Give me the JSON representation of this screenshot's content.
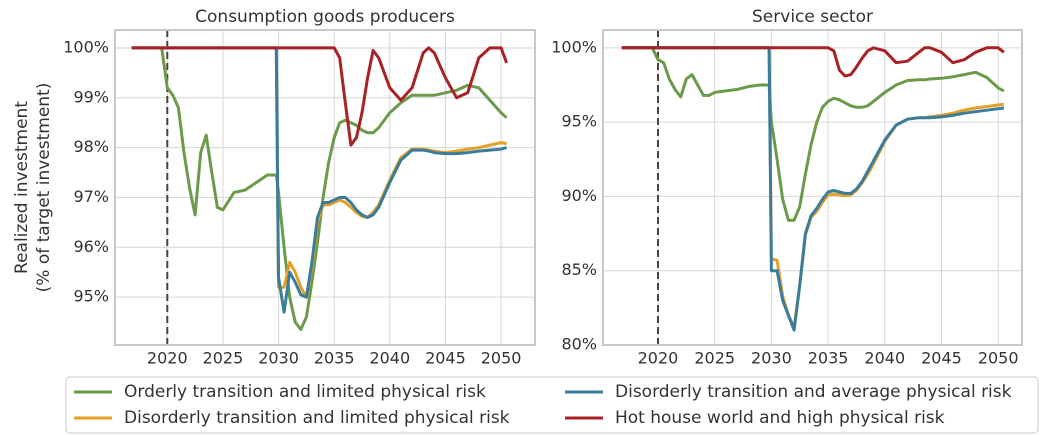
{
  "chart_data": [
    {
      "type": "line",
      "title": "Consumption goods producers",
      "ylabel": [
        "Realized investment",
        "(% of target investment)"
      ],
      "x": [
        2016.8,
        2019.5,
        2020,
        2020.5,
        2021,
        2021.5,
        2022,
        2022.5,
        2023,
        2023.5,
        2024,
        2024.5,
        2025,
        2026,
        2027,
        2028,
        2029,
        2029.8,
        2030,
        2030.5,
        2031,
        2031.5,
        2032,
        2032.5,
        2033,
        2033.5,
        2034,
        2034.5,
        2035,
        2035.5,
        2036,
        2036.5,
        2037,
        2037.5,
        2038,
        2038.5,
        2039,
        2040,
        2041,
        2042,
        2043,
        2043.5,
        2044,
        2045,
        2046,
        2047,
        2048,
        2049,
        2050,
        2050.5
      ],
      "xlim": [
        2015.3,
        2053.05
      ],
      "xticks": [
        2020,
        2025,
        2030,
        2035,
        2040,
        2045,
        2050
      ],
      "ylim": [
        94.04,
        100.36
      ],
      "yticks": [
        {
          "value": 95,
          "label": "95%"
        },
        {
          "value": 96,
          "label": "96%"
        },
        {
          "value": 97,
          "label": "97%"
        },
        {
          "value": 98,
          "label": "98%"
        },
        {
          "value": 99,
          "label": "99%"
        },
        {
          "value": 100,
          "label": "100%"
        }
      ],
      "grid": true,
      "vline": 2020,
      "series": [
        {
          "name": "Orderly transition and limited physical risk",
          "color": "#6a9a4a",
          "values": [
            100,
            100,
            99.2,
            99.05,
            98.8,
            97.9,
            97.2,
            96.65,
            97.9,
            98.25,
            97.5,
            96.8,
            96.75,
            97.1,
            97.15,
            97.3,
            97.45,
            97.45,
            97.1,
            96.0,
            95.0,
            94.5,
            94.35,
            94.6,
            95.3,
            96.1,
            97.0,
            97.7,
            98.2,
            98.5,
            98.55,
            98.5,
            98.45,
            98.35,
            98.3,
            98.3,
            98.4,
            98.7,
            98.9,
            99.05,
            99.05,
            99.05,
            99.05,
            99.1,
            99.15,
            99.25,
            99.2,
            98.95,
            98.7,
            98.6
          ]
        },
        {
          "name": "Disorderly transition and limited physical risk",
          "color": "#e4a027",
          "values": [
            100,
            100,
            100,
            100,
            100,
            100,
            100,
            100,
            100,
            100,
            100,
            100,
            100,
            100,
            100,
            100,
            100,
            100,
            95.2,
            95.2,
            95.7,
            95.5,
            95.2,
            95.0,
            95.6,
            96.5,
            96.85,
            96.85,
            96.9,
            96.95,
            96.9,
            96.8,
            96.7,
            96.62,
            96.6,
            96.7,
            96.85,
            97.35,
            97.8,
            97.97,
            97.97,
            97.95,
            97.93,
            97.9,
            97.93,
            97.97,
            98.0,
            98.05,
            98.1,
            98.08
          ]
        },
        {
          "name": "Disorderly transition and average physical risk",
          "color": "#3a7c9c",
          "values": [
            100,
            100,
            100,
            100,
            100,
            100,
            100,
            100,
            100,
            100,
            100,
            100,
            100,
            100,
            100,
            100,
            100,
            100,
            95.4,
            94.7,
            95.5,
            95.3,
            95.05,
            95.0,
            95.7,
            96.6,
            96.9,
            96.9,
            96.95,
            97.0,
            97.0,
            96.9,
            96.75,
            96.65,
            96.6,
            96.65,
            96.8,
            97.3,
            97.75,
            97.95,
            97.95,
            97.93,
            97.9,
            97.88,
            97.88,
            97.9,
            97.93,
            97.95,
            97.97,
            98.0
          ]
        },
        {
          "name": "Hot house world and high physical risk",
          "color": "#a82225",
          "values": [
            100,
            100,
            100,
            100,
            100,
            100,
            100,
            100,
            100,
            100,
            100,
            100,
            100,
            100,
            100,
            100,
            100,
            100,
            100,
            100,
            100,
            100,
            100,
            100,
            100,
            100,
            100,
            100,
            100,
            99.8,
            98.9,
            98.05,
            98.2,
            98.7,
            99.4,
            99.95,
            99.8,
            99.2,
            98.95,
            99.2,
            99.9,
            100,
            99.9,
            99.4,
            99.0,
            99.1,
            99.8,
            100,
            100,
            99.7
          ]
        }
      ]
    },
    {
      "type": "line",
      "title": "Service sector",
      "x": [
        2016.8,
        2019.5,
        2020,
        2020.5,
        2021,
        2021.5,
        2022,
        2022.5,
        2023,
        2023.5,
        2024,
        2024.5,
        2025,
        2026,
        2027,
        2028,
        2029,
        2029.8,
        2030,
        2030.5,
        2031,
        2031.5,
        2032,
        2032.5,
        2033,
        2033.5,
        2034,
        2034.5,
        2035,
        2035.5,
        2036,
        2036.5,
        2037,
        2037.5,
        2038,
        2038.5,
        2039,
        2040,
        2041,
        2042,
        2043,
        2043.5,
        2044,
        2045,
        2046,
        2047,
        2048,
        2049,
        2050,
        2050.5
      ],
      "xlim": [
        2015.15,
        2052.1
      ],
      "xticks": [
        2020,
        2025,
        2030,
        2035,
        2040,
        2045,
        2050
      ],
      "ylim": [
        80,
        101.2
      ],
      "yticks": [
        {
          "value": 80,
          "label": "80%"
        },
        {
          "value": 85,
          "label": "85%"
        },
        {
          "value": 90,
          "label": "90%"
        },
        {
          "value": 95,
          "label": "95%"
        },
        {
          "value": 100,
          "label": "100%"
        }
      ],
      "grid": true,
      "vline": 2020,
      "series": [
        {
          "color": "#6a9a4a",
          "values": [
            100,
            100,
            99.2,
            99.0,
            97.9,
            97.2,
            96.7,
            97.9,
            98.2,
            97.5,
            96.8,
            96.8,
            97.0,
            97.1,
            97.2,
            97.4,
            97.5,
            97.5,
            95.0,
            92.5,
            89.8,
            88.4,
            88.4,
            89.3,
            91.5,
            93.5,
            95.0,
            96.0,
            96.4,
            96.6,
            96.5,
            96.3,
            96.1,
            96.0,
            96.0,
            96.1,
            96.4,
            97.0,
            97.5,
            97.8,
            97.85,
            97.85,
            97.9,
            97.95,
            98.05,
            98.2,
            98.35,
            98.0,
            97.3,
            97.1
          ]
        },
        {
          "color": "#e4a027",
          "values": [
            100,
            100,
            100,
            100,
            100,
            100,
            100,
            100,
            100,
            100,
            100,
            100,
            100,
            100,
            100,
            100,
            100,
            100,
            85.8,
            85.7,
            83.3,
            82.0,
            81.2,
            84.0,
            87.4,
            88.6,
            89.0,
            89.6,
            90.1,
            90.15,
            90.1,
            90.05,
            90.1,
            90.4,
            90.9,
            91.5,
            92.2,
            93.7,
            94.8,
            95.2,
            95.3,
            95.3,
            95.35,
            95.45,
            95.6,
            95.8,
            95.95,
            96.05,
            96.15,
            96.2
          ]
        },
        {
          "color": "#3a7c9c",
          "values": [
            100,
            100,
            100,
            100,
            100,
            100,
            100,
            100,
            100,
            100,
            100,
            100,
            100,
            100,
            100,
            100,
            100,
            100,
            85.0,
            85.0,
            83.0,
            82.0,
            81.0,
            84.0,
            87.5,
            88.7,
            89.2,
            89.8,
            90.3,
            90.4,
            90.3,
            90.2,
            90.2,
            90.5,
            91.0,
            91.7,
            92.4,
            93.8,
            94.8,
            95.2,
            95.3,
            95.3,
            95.3,
            95.35,
            95.45,
            95.6,
            95.7,
            95.8,
            95.9,
            95.95
          ]
        },
        {
          "color": "#a82225",
          "values": [
            100,
            100,
            100,
            100,
            100,
            100,
            100,
            100,
            100,
            100,
            100,
            100,
            100,
            100,
            100,
            100,
            100,
            100,
            100,
            100,
            100,
            100,
            100,
            100,
            100,
            100,
            100,
            100,
            100,
            99.8,
            98.5,
            98.1,
            98.2,
            98.7,
            99.3,
            99.8,
            100,
            99.8,
            99.0,
            99.1,
            99.7,
            100,
            100,
            99.7,
            99.0,
            99.2,
            99.7,
            100,
            100,
            99.7
          ]
        }
      ]
    }
  ]
}
